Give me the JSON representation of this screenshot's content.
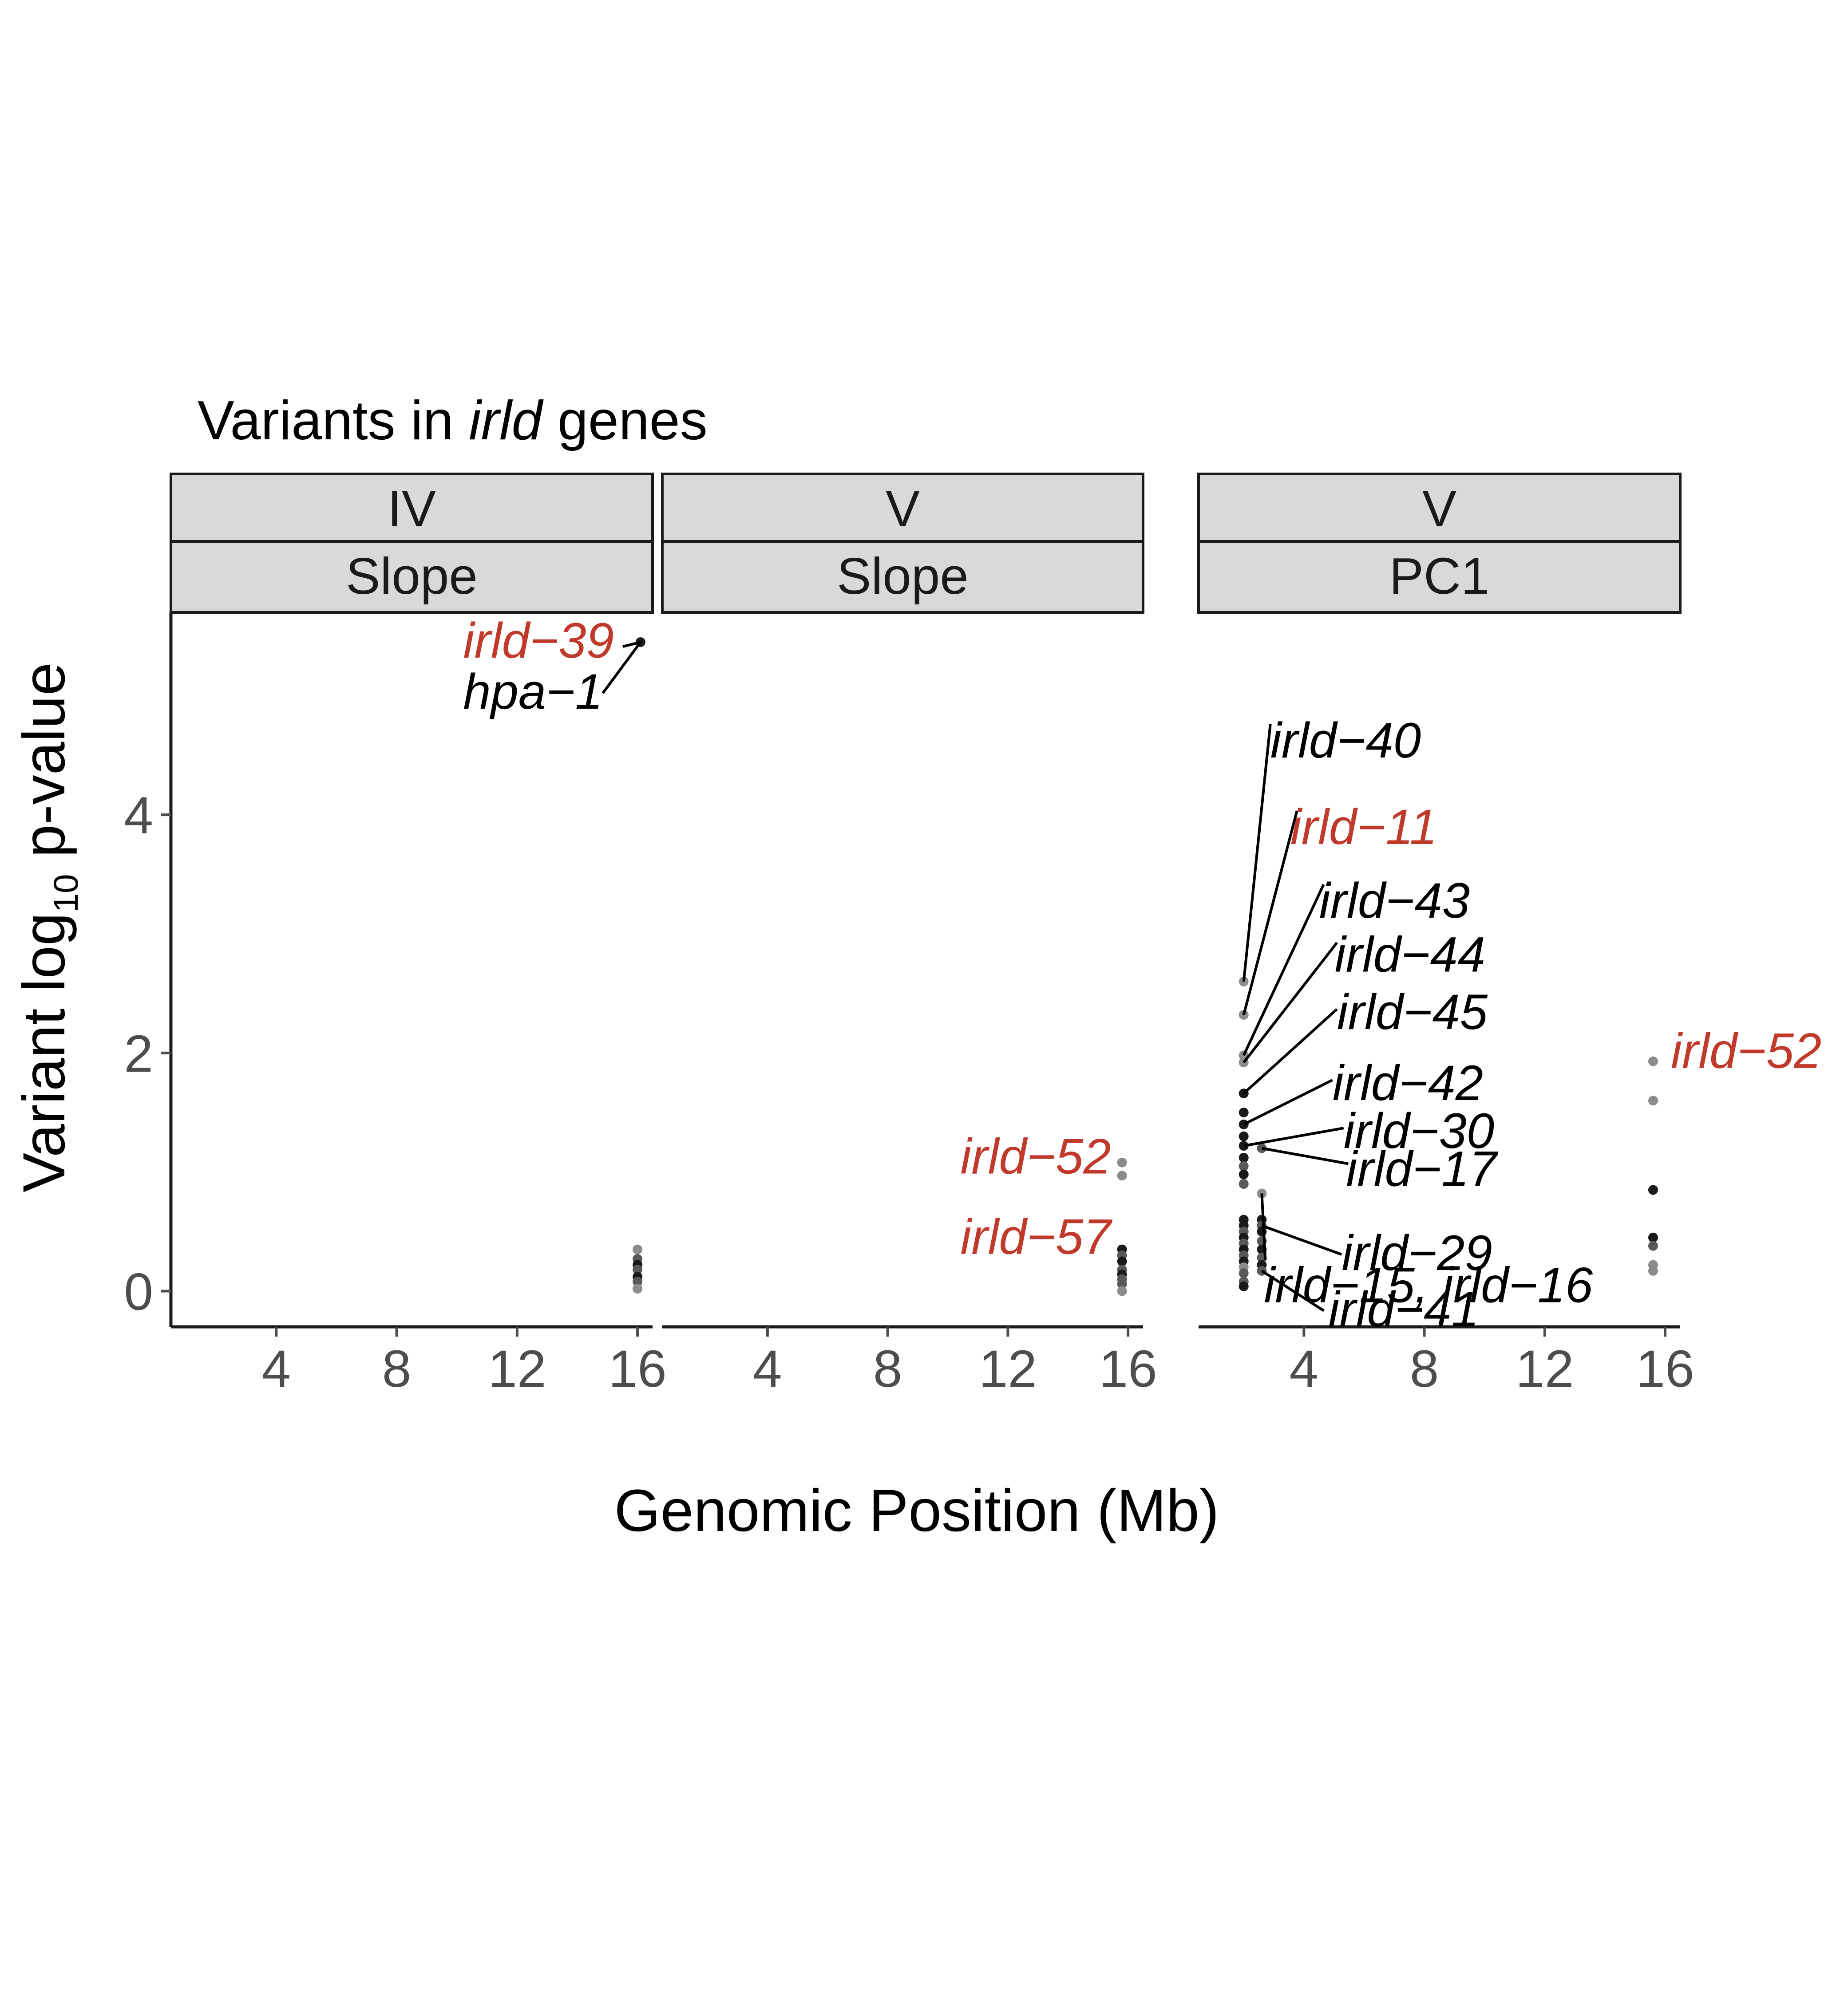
{
  "chart_data": {
    "type": "scatter",
    "title_prefix": "Variants in ",
    "title_italic": "irld",
    "title_suffix": " genes",
    "xlabel": "Genomic Position (Mb)",
    "ylabel_prefix": "Variant log",
    "ylabel_subscript": "10",
    "ylabel_suffix": " p-value",
    "xlim": [
      0.5,
      16.5
    ],
    "ylim": [
      -0.3,
      5.7
    ],
    "xticks": [
      4,
      8,
      12,
      16
    ],
    "yticks": [
      0,
      2,
      4
    ],
    "grid": false,
    "colors": {
      "highlight_label": "#c0392b",
      "plain_label": "#000000",
      "strip_fill": "#d9d9d9",
      "point_dark": "#1a1a1a",
      "point_mid": "#595959",
      "point_light": "#8c8c8c"
    },
    "panels": [
      {
        "chromosome": "IV",
        "trait": "Slope",
        "points": [
          {
            "x": 16.1,
            "y": 5.45,
            "shade": "dark"
          },
          {
            "x": 16.0,
            "y": 0.35,
            "shade": "light"
          },
          {
            "x": 16.0,
            "y": 0.27,
            "shade": "mid"
          },
          {
            "x": 16.0,
            "y": 0.22,
            "shade": "dark"
          },
          {
            "x": 16.0,
            "y": 0.18,
            "shade": "mid"
          },
          {
            "x": 16.0,
            "y": 0.12,
            "shade": "dark"
          },
          {
            "x": 16.0,
            "y": 0.08,
            "shade": "mid"
          },
          {
            "x": 16.0,
            "y": 0.02,
            "shade": "light"
          }
        ],
        "labels": [
          {
            "text": "irld−39",
            "highlight": true,
            "x": 16.1,
            "y": 5.45
          },
          {
            "text": "hpa−1",
            "highlight": false,
            "x": 16.1,
            "y": 5.45
          }
        ]
      },
      {
        "chromosome": "V",
        "trait": "Slope",
        "points": [
          {
            "x": 15.8,
            "y": 1.08,
            "shade": "light"
          },
          {
            "x": 15.8,
            "y": 0.97,
            "shade": "light"
          },
          {
            "x": 15.8,
            "y": 0.35,
            "shade": "dark"
          },
          {
            "x": 15.8,
            "y": 0.3,
            "shade": "mid"
          },
          {
            "x": 15.8,
            "y": 0.25,
            "shade": "dark"
          },
          {
            "x": 15.8,
            "y": 0.18,
            "shade": "mid"
          },
          {
            "x": 15.8,
            "y": 0.14,
            "shade": "dark"
          },
          {
            "x": 15.8,
            "y": 0.1,
            "shade": "mid"
          },
          {
            "x": 15.8,
            "y": 0.06,
            "shade": "mid"
          },
          {
            "x": 15.8,
            "y": 0.0,
            "shade": "light"
          }
        ],
        "labels": [
          {
            "text": "irld−52",
            "highlight": true,
            "x": 15.8,
            "y": 1.08
          },
          {
            "text": "irld−57",
            "highlight": true,
            "x": 15.8,
            "y": 0.35
          }
        ]
      },
      {
        "chromosome": "V",
        "trait": "PC1",
        "points": [
          {
            "x": 2.0,
            "y": 2.6,
            "shade": "light"
          },
          {
            "x": 2.0,
            "y": 2.32,
            "shade": "light"
          },
          {
            "x": 2.0,
            "y": 1.98,
            "shade": "light"
          },
          {
            "x": 2.0,
            "y": 1.92,
            "shade": "light"
          },
          {
            "x": 2.0,
            "y": 1.66,
            "shade": "dark"
          },
          {
            "x": 2.0,
            "y": 1.5,
            "shade": "dark"
          },
          {
            "x": 2.0,
            "y": 1.4,
            "shade": "dark"
          },
          {
            "x": 2.0,
            "y": 1.3,
            "shade": "dark"
          },
          {
            "x": 2.0,
            "y": 1.22,
            "shade": "dark"
          },
          {
            "x": 2.0,
            "y": 1.12,
            "shade": "dark"
          },
          {
            "x": 2.0,
            "y": 1.05,
            "shade": "mid"
          },
          {
            "x": 2.0,
            "y": 0.98,
            "shade": "dark"
          },
          {
            "x": 2.0,
            "y": 0.9,
            "shade": "mid"
          },
          {
            "x": 2.0,
            "y": 0.6,
            "shade": "dark"
          },
          {
            "x": 2.0,
            "y": 0.55,
            "shade": "dark"
          },
          {
            "x": 2.0,
            "y": 0.5,
            "shade": "mid"
          },
          {
            "x": 2.0,
            "y": 0.45,
            "shade": "dark"
          },
          {
            "x": 2.0,
            "y": 0.4,
            "shade": "mid"
          },
          {
            "x": 2.0,
            "y": 0.35,
            "shade": "dark"
          },
          {
            "x": 2.0,
            "y": 0.3,
            "shade": "mid"
          },
          {
            "x": 2.0,
            "y": 0.25,
            "shade": "dark"
          },
          {
            "x": 2.0,
            "y": 0.2,
            "shade": "light"
          },
          {
            "x": 2.0,
            "y": 0.15,
            "shade": "mid"
          },
          {
            "x": 2.0,
            "y": 0.08,
            "shade": "mid"
          },
          {
            "x": 2.0,
            "y": 0.04,
            "shade": "dark"
          },
          {
            "x": 2.6,
            "y": 1.2,
            "shade": "mid"
          },
          {
            "x": 2.6,
            "y": 0.82,
            "shade": "light"
          },
          {
            "x": 2.6,
            "y": 0.6,
            "shade": "dark"
          },
          {
            "x": 2.6,
            "y": 0.55,
            "shade": "mid"
          },
          {
            "x": 2.6,
            "y": 0.5,
            "shade": "dark"
          },
          {
            "x": 2.6,
            "y": 0.42,
            "shade": "mid"
          },
          {
            "x": 2.6,
            "y": 0.35,
            "shade": "dark"
          },
          {
            "x": 2.6,
            "y": 0.28,
            "shade": "mid"
          },
          {
            "x": 2.6,
            "y": 0.22,
            "shade": "dark"
          },
          {
            "x": 2.6,
            "y": 0.17,
            "shade": "mid"
          },
          {
            "x": 15.6,
            "y": 1.93,
            "shade": "light"
          },
          {
            "x": 15.6,
            "y": 1.6,
            "shade": "light"
          },
          {
            "x": 15.6,
            "y": 0.85,
            "shade": "dark"
          },
          {
            "x": 15.6,
            "y": 0.45,
            "shade": "dark"
          },
          {
            "x": 15.6,
            "y": 0.38,
            "shade": "mid"
          },
          {
            "x": 15.6,
            "y": 0.22,
            "shade": "light"
          },
          {
            "x": 15.6,
            "y": 0.17,
            "shade": "light"
          }
        ],
        "labels": [
          {
            "text": "irld−40",
            "highlight": false,
            "x": 2.0,
            "y": 2.6
          },
          {
            "text": "irld−11",
            "highlight": true,
            "x": 2.0,
            "y": 2.32
          },
          {
            "text": "irld−43",
            "highlight": false,
            "x": 2.0,
            "y": 1.98
          },
          {
            "text": "irld−44",
            "highlight": false,
            "x": 2.0,
            "y": 1.92
          },
          {
            "text": "irld−45",
            "highlight": false,
            "x": 2.0,
            "y": 1.66
          },
          {
            "text": "irld−42",
            "highlight": false,
            "x": 2.0,
            "y": 1.4
          },
          {
            "text": "irld−30",
            "highlight": false,
            "x": 2.0,
            "y": 1.22
          },
          {
            "text": "irld−17",
            "highlight": false,
            "x": 2.6,
            "y": 1.2
          },
          {
            "text": "irld−15, irld−16",
            "highlight": false,
            "x": 2.6,
            "y": 0.82
          },
          {
            "text": "irld−29",
            "highlight": false,
            "x": 2.6,
            "y": 0.55
          },
          {
            "text": "irld−41",
            "highlight": false,
            "x": 2.6,
            "y": 0.17
          },
          {
            "text": "irld−52",
            "highlight": true,
            "x": 15.6,
            "y": 1.93
          }
        ]
      }
    ]
  }
}
